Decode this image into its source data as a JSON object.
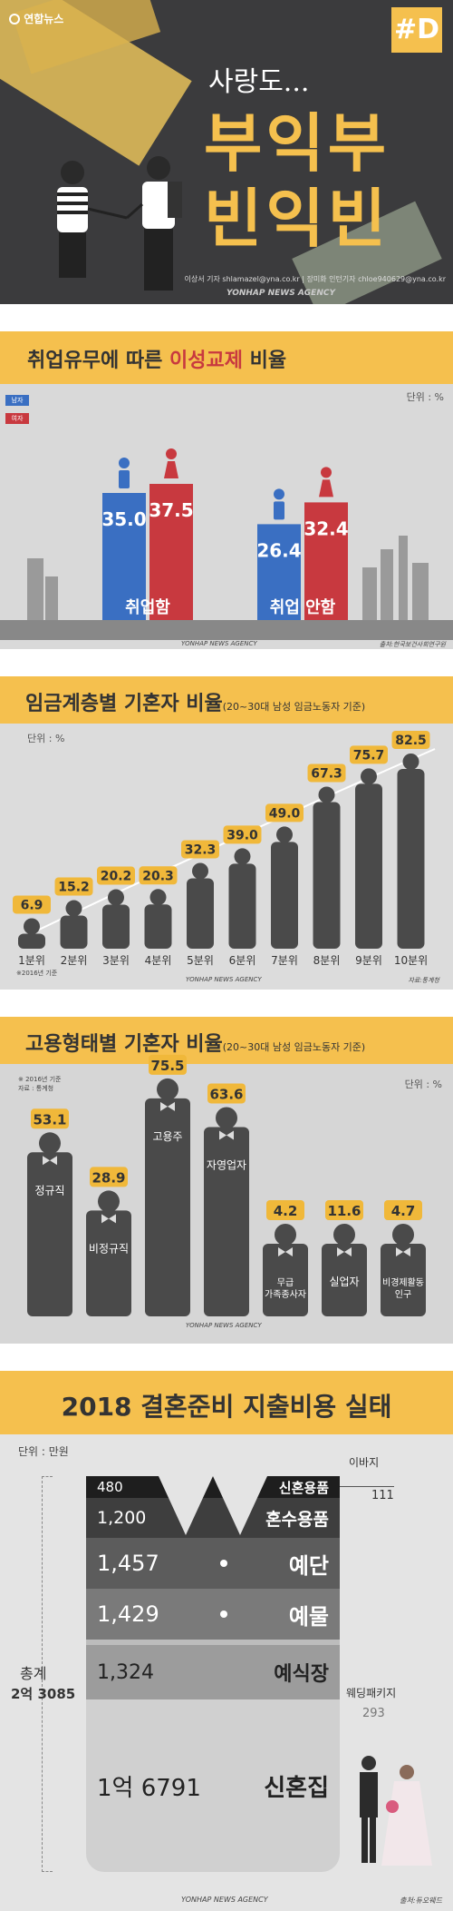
{
  "header": {
    "logo": "연합뉴스",
    "badge": "#D",
    "subtitle": "사랑도...",
    "title_line1": "부익부",
    "title_line2": "빈익빈",
    "credit": "이상서 기자 shlamazel@yna.co.kr | 장미화 인턴기자 chloe940629@yna.co.kr",
    "agency": "YONHAP NEWS AGENCY"
  },
  "section1": {
    "title_pre": "취업유무에 따른 ",
    "title_bold": "이성교제",
    "title_post": " 비율",
    "unit": "단위 : %",
    "legend_male": "남자",
    "legend_female": "여자",
    "source": "출처:한국보건사회연구원",
    "agency": "YONHAP NEWS AGENCY"
  },
  "section2": {
    "title": "임금계층별 기혼자 비율",
    "title_note": "(20~30대 남성 임금노동자 기준)",
    "unit": "단위 : %",
    "note": "※2016년 기준",
    "source": "자료:통계청",
    "agency": "YONHAP NEWS AGENCY"
  },
  "section3": {
    "title": "고용형태별 기혼자 비율",
    "title_note": "(20~30대 남성 임금노동자 기준)",
    "note1": "※ 2016년 기준",
    "note2": "자료 : 통계청",
    "unit": "단위 : %",
    "agency": "YONHAP NEWS AGENCY"
  },
  "section4": {
    "title": "2018 결혼준비 지출비용 실태",
    "unit": "단위 : 만원",
    "total_label": "총계",
    "total_value": "2억 3085",
    "ibaji_label": "이바지",
    "ibaji_value": "111",
    "wedding_pkg_label": "웨딩패키지",
    "wedding_pkg_value": "293",
    "items": [
      {
        "value": "480",
        "label": "신혼용품"
      },
      {
        "value": "1,200",
        "label": "혼수용품"
      },
      {
        "value": "1,457",
        "label": "예단"
      },
      {
        "value": "1,429",
        "label": "예물"
      },
      {
        "value": "1,324",
        "label": "예식장"
      },
      {
        "value": "1억 6791",
        "label": "신혼집"
      }
    ],
    "agency": "YONHAP NEWS AGENCY",
    "source": "출처:듀오웨드"
  },
  "chart_data": [
    {
      "type": "bar",
      "title": "취업유무에 따른 이성교제 비율",
      "categories": [
        "취업함",
        "취업 안함"
      ],
      "series": [
        {
          "name": "남자",
          "values": [
            35.0,
            26.4
          ],
          "color": "#3a6fc2"
        },
        {
          "name": "여자",
          "values": [
            37.5,
            32.4
          ],
          "color": "#c8393f"
        }
      ],
      "ylabel": "단위 : %",
      "legend": "top-left"
    },
    {
      "type": "bar",
      "title": "임금계층별 기혼자 비율",
      "categories": [
        "1분위",
        "2분위",
        "3분위",
        "4분위",
        "5분위",
        "6분위",
        "7분위",
        "8분위",
        "9분위",
        "10분위"
      ],
      "values": [
        6.9,
        15.2,
        20.2,
        20.3,
        32.3,
        39.0,
        49.0,
        67.3,
        75.7,
        82.5
      ],
      "labels": [
        "6.9",
        "15.2",
        "20.2",
        "20.3",
        "32.3",
        "39.0",
        "49.0",
        "67.3",
        "75.7",
        "82.5"
      ],
      "ylabel": "단위 : %"
    },
    {
      "type": "bar",
      "title": "고용형태별 기혼자 비율",
      "categories": [
        "정규직",
        "비정규직",
        "고용주",
        "자영업자",
        "무급 가족종사자",
        "실업자",
        "비경제활동 인구"
      ],
      "values": [
        53.1,
        28.9,
        75.5,
        63.6,
        4.2,
        11.6,
        4.7
      ],
      "labels": [
        "53.1",
        "28.9",
        "75.5",
        "63.6",
        "4.2",
        "11.6",
        "4.7"
      ],
      "ylabel": "단위 : %"
    }
  ]
}
